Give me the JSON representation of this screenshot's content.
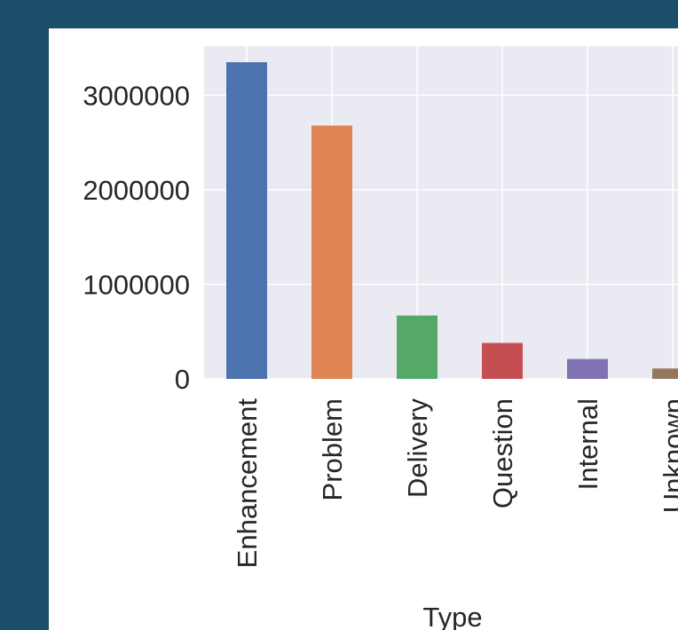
{
  "chart_data": {
    "type": "bar",
    "categories": [
      "Enhancement",
      "Problem",
      "Delivery",
      "Question",
      "Internal",
      "Unknown"
    ],
    "values": [
      3350000,
      2680000,
      670000,
      380000,
      210000,
      110000
    ],
    "colors": [
      "#4c72b0",
      "#dd8452",
      "#55a868",
      "#c44e52",
      "#8172b3",
      "#937860"
    ],
    "xlabel": "Type",
    "ylabel": "",
    "yticks": [
      0,
      1000000,
      2000000,
      3000000
    ],
    "ytick_labels": [
      "0",
      "1000000",
      "2000000",
      "3000000"
    ],
    "ylim": [
      0,
      3520000
    ],
    "grid": true
  }
}
